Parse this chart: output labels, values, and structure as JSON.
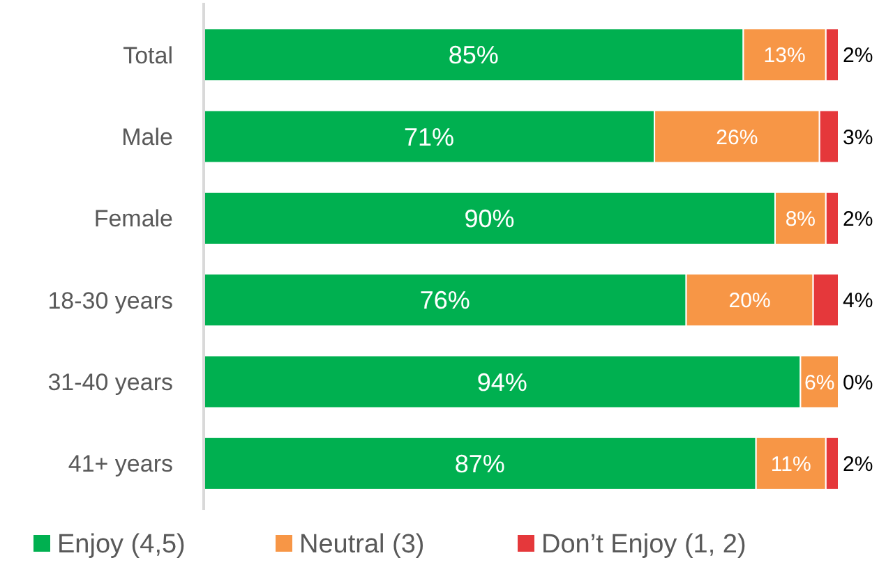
{
  "chart_data": {
    "type": "bar",
    "orientation": "horizontal",
    "stacked": true,
    "categories": [
      "Total",
      "Male",
      "Female",
      "18-30 years",
      "31-40 years",
      "41+ years"
    ],
    "series": [
      {
        "name": "Enjoy (4,5)",
        "color": "#00b050",
        "values": [
          85,
          71,
          90,
          76,
          94,
          87
        ],
        "value_labels": [
          "85%",
          "71%",
          "90%",
          "76%",
          "94%",
          "87%"
        ]
      },
      {
        "name": "Neutral (3)",
        "color": "#f79646",
        "values": [
          13,
          26,
          8,
          20,
          6,
          11
        ],
        "value_labels": [
          "13%",
          "26%",
          "8%",
          "20%",
          "6%",
          "11%"
        ]
      },
      {
        "name": "Don’t Enjoy (1, 2)",
        "color": "#e5383b",
        "values": [
          2,
          3,
          2,
          4,
          0,
          2
        ],
        "value_labels": [
          "2%",
          "3%",
          "2%",
          "4%",
          "0%",
          "2%"
        ]
      }
    ],
    "xlim": [
      0,
      100
    ],
    "tick_labels": "y",
    "legend": "bottom"
  }
}
